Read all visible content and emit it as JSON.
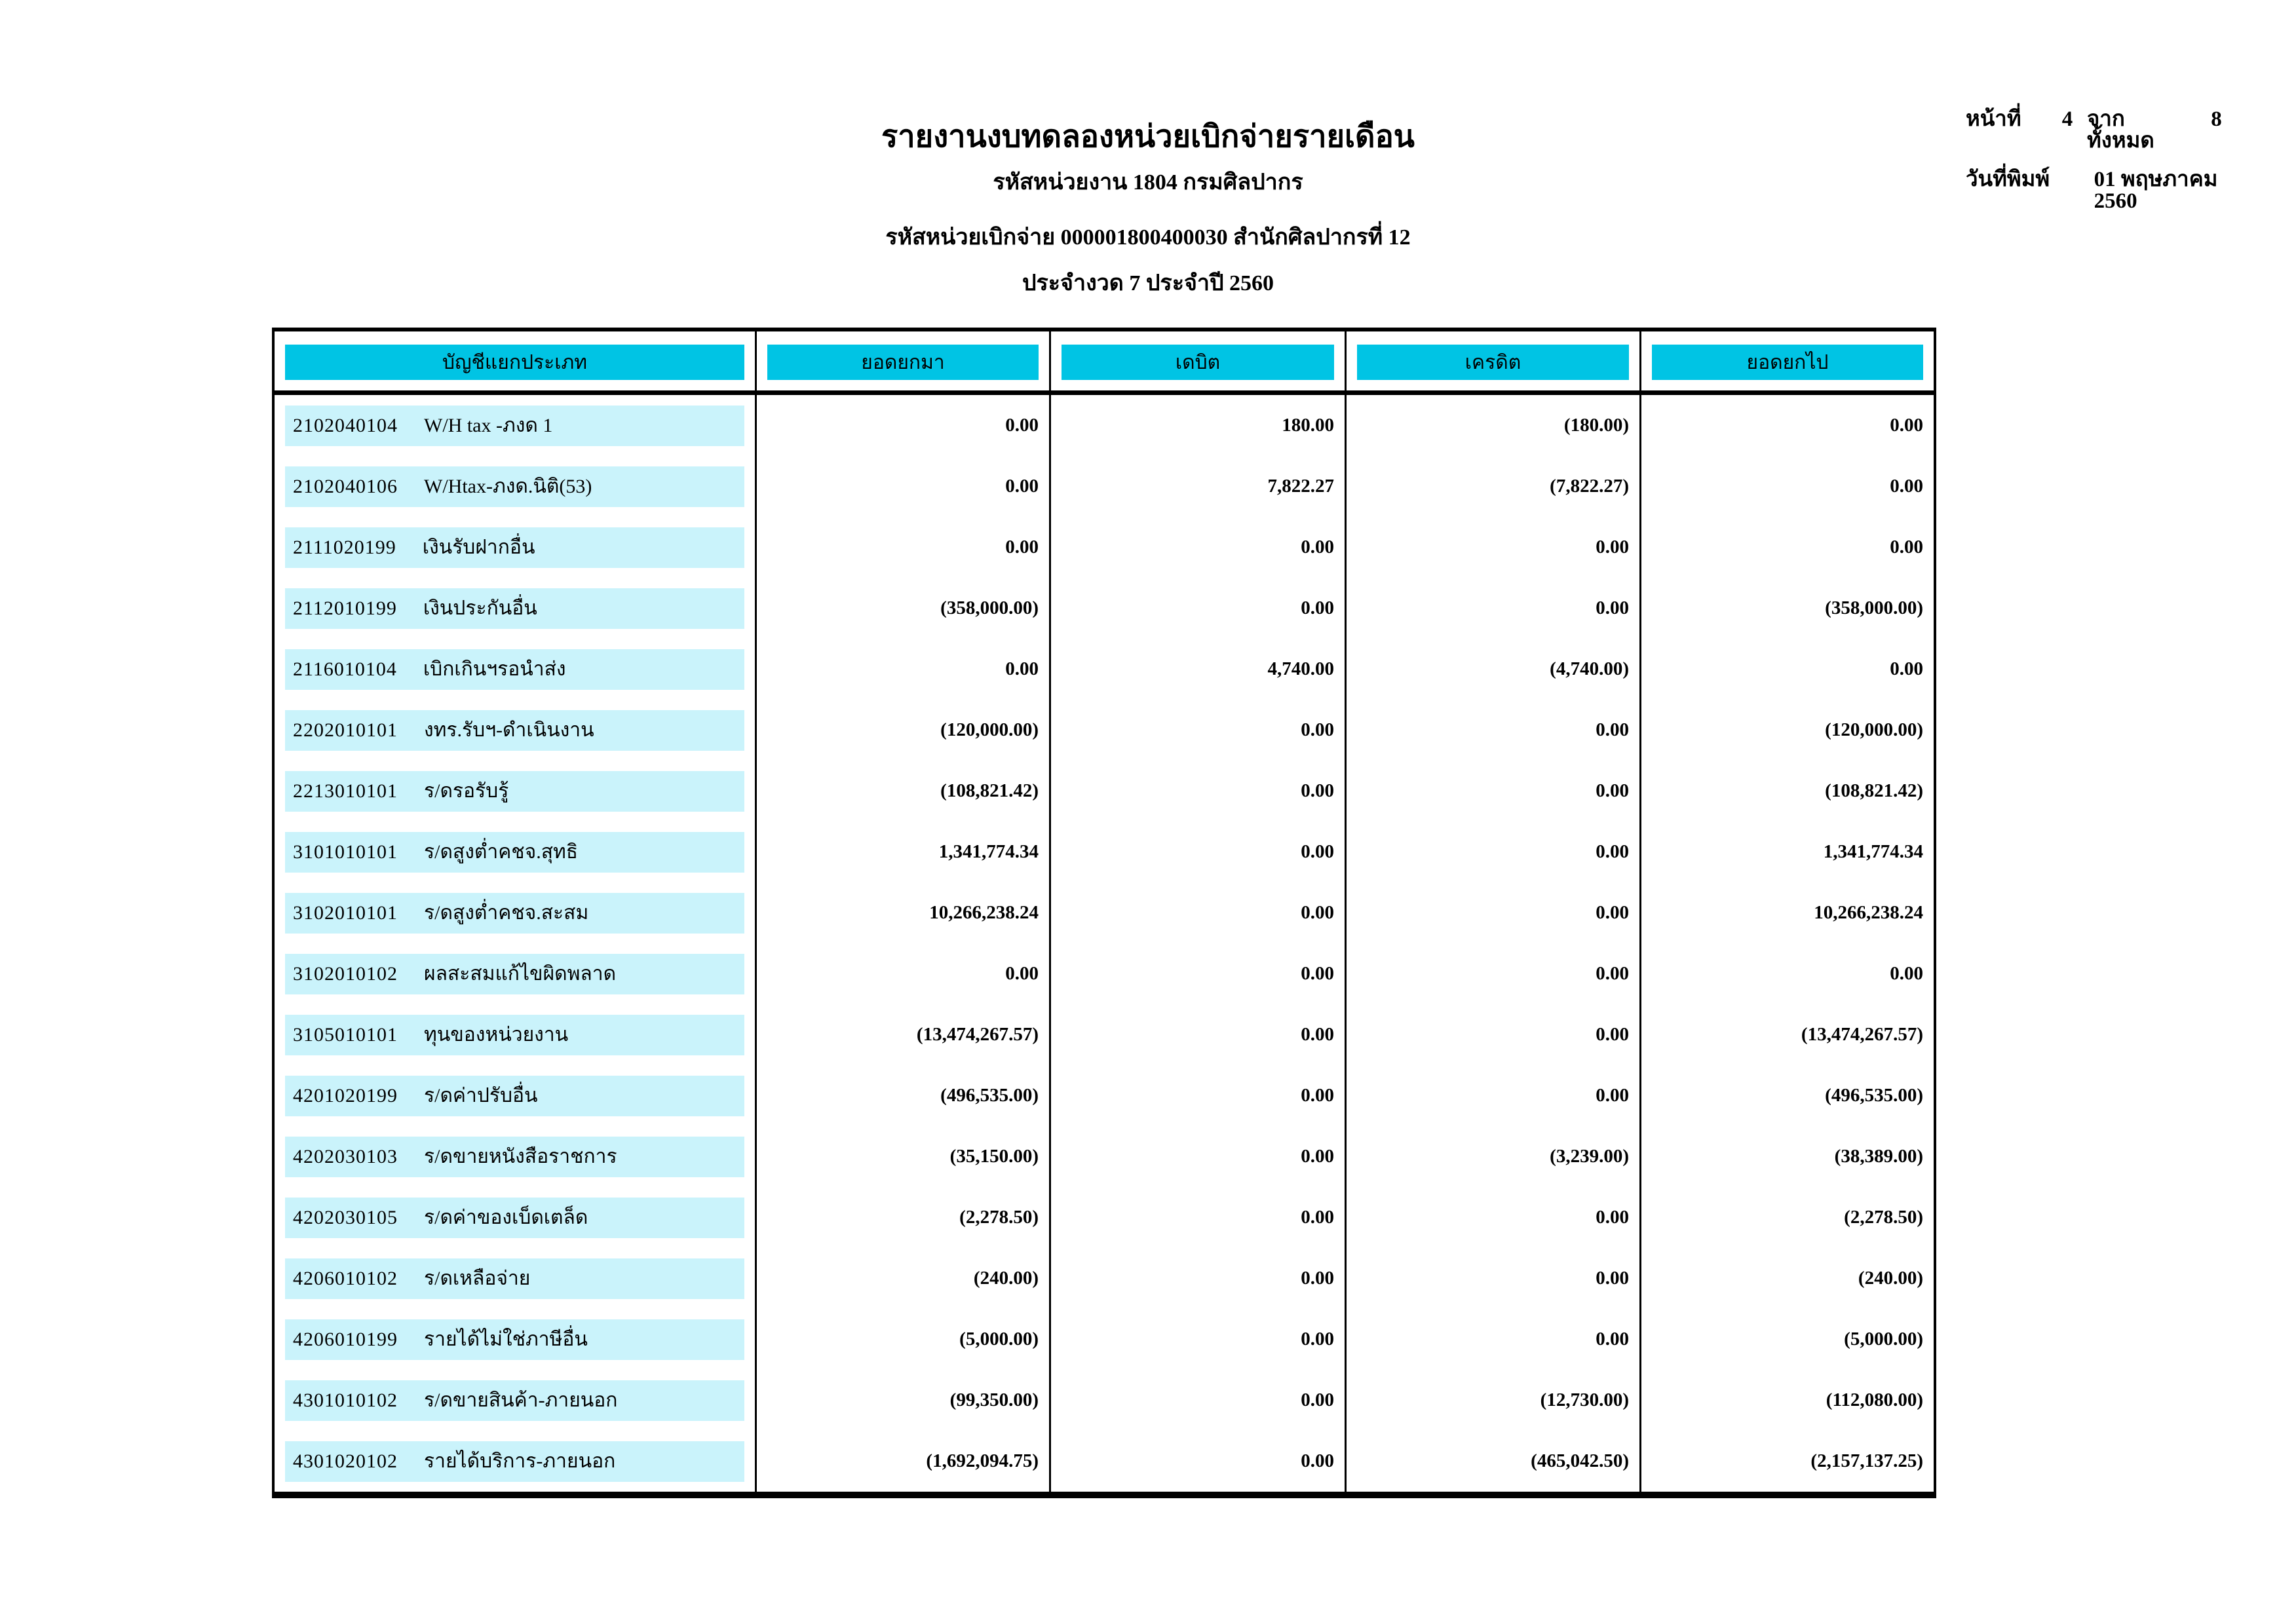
{
  "report": {
    "title": "รายงานงบทดลองหน่วยเบิกจ่ายรายเดือน",
    "agency_line": "รหัสหน่วยงาน 1804 กรมศิลปากร",
    "disburse_unit_line": "รหัสหน่วยเบิกจ่าย 000001800400030 สำนักศิลปากรที่ 12",
    "period_line": "ประจำงวด 7 ประจำปี 2560",
    "page_label": "หน้าที่",
    "page_number": "4",
    "total_label": "จากทั้งหมด",
    "total_pages": "8",
    "print_date_label": "วันที่พิมพ์",
    "print_date": "01 พฤษภาคม 2560"
  },
  "colors": {
    "header_bg": "#00C4E4",
    "row_band": "#CAF3FB",
    "border": "#000000"
  },
  "table": {
    "headers": [
      "บัญชีแยกประเภท",
      "ยอดยกมา",
      "เดบิต",
      "เครดิต",
      "ยอดยกไป"
    ],
    "rows": [
      {
        "code": "2102040104",
        "name": "W/H tax -ภงด 1",
        "opening": "0.00",
        "debit": "180.00",
        "credit": "(180.00)",
        "closing": "0.00"
      },
      {
        "code": "2102040106",
        "name": "W/Htax-ภงด.นิติ(53)",
        "opening": "0.00",
        "debit": "7,822.27",
        "credit": "(7,822.27)",
        "closing": "0.00"
      },
      {
        "code": "2111020199",
        "name": "เงินรับฝากอื่น",
        "opening": "0.00",
        "debit": "0.00",
        "credit": "0.00",
        "closing": "0.00"
      },
      {
        "code": "2112010199",
        "name": "เงินประกันอื่น",
        "opening": "(358,000.00)",
        "debit": "0.00",
        "credit": "0.00",
        "closing": "(358,000.00)"
      },
      {
        "code": "2116010104",
        "name": "เบิกเกินฯรอนำส่ง",
        "opening": "0.00",
        "debit": "4,740.00",
        "credit": "(4,740.00)",
        "closing": "0.00"
      },
      {
        "code": "2202010101",
        "name": "งทร.รับฯ-ดำเนินงาน",
        "opening": "(120,000.00)",
        "debit": "0.00",
        "credit": "0.00",
        "closing": "(120,000.00)"
      },
      {
        "code": "2213010101",
        "name": "ร/ดรอรับรู้",
        "opening": "(108,821.42)",
        "debit": "0.00",
        "credit": "0.00",
        "closing": "(108,821.42)"
      },
      {
        "code": "3101010101",
        "name": "ร/ดสูงต่ำคชจ.สุทธิ",
        "opening": "1,341,774.34",
        "debit": "0.00",
        "credit": "0.00",
        "closing": "1,341,774.34"
      },
      {
        "code": "3102010101",
        "name": "ร/ดสูงต่ำคชจ.สะสม",
        "opening": "10,266,238.24",
        "debit": "0.00",
        "credit": "0.00",
        "closing": "10,266,238.24"
      },
      {
        "code": "3102010102",
        "name": "ผลสะสมแก้ไขผิดพลาด",
        "opening": "0.00",
        "debit": "0.00",
        "credit": "0.00",
        "closing": "0.00"
      },
      {
        "code": "3105010101",
        "name": "ทุนของหน่วยงาน",
        "opening": "(13,474,267.57)",
        "debit": "0.00",
        "credit": "0.00",
        "closing": "(13,474,267.57)"
      },
      {
        "code": "4201020199",
        "name": "ร/ดค่าปรับอื่น",
        "opening": "(496,535.00)",
        "debit": "0.00",
        "credit": "0.00",
        "closing": "(496,535.00)"
      },
      {
        "code": "4202030103",
        "name": "ร/ดขายหนังสือราชการ",
        "opening": "(35,150.00)",
        "debit": "0.00",
        "credit": "(3,239.00)",
        "closing": "(38,389.00)"
      },
      {
        "code": "4202030105",
        "name": "ร/ดค่าของเบ็ดเตล็ด",
        "opening": "(2,278.50)",
        "debit": "0.00",
        "credit": "0.00",
        "closing": "(2,278.50)"
      },
      {
        "code": "4206010102",
        "name": "ร/ดเหลือจ่าย",
        "opening": "(240.00)",
        "debit": "0.00",
        "credit": "0.00",
        "closing": "(240.00)"
      },
      {
        "code": "4206010199",
        "name": "รายได้ไม่ใช่ภาษีอื่น",
        "opening": "(5,000.00)",
        "debit": "0.00",
        "credit": "0.00",
        "closing": "(5,000.00)"
      },
      {
        "code": "4301010102",
        "name": "ร/ดขายสินค้า-ภายนอก",
        "opening": "(99,350.00)",
        "debit": "0.00",
        "credit": "(12,730.00)",
        "closing": "(112,080.00)"
      },
      {
        "code": "4301020102",
        "name": "รายได้บริการ-ภายนอก",
        "opening": "(1,692,094.75)",
        "debit": "0.00",
        "credit": "(465,042.50)",
        "closing": "(2,157,137.25)"
      }
    ]
  }
}
